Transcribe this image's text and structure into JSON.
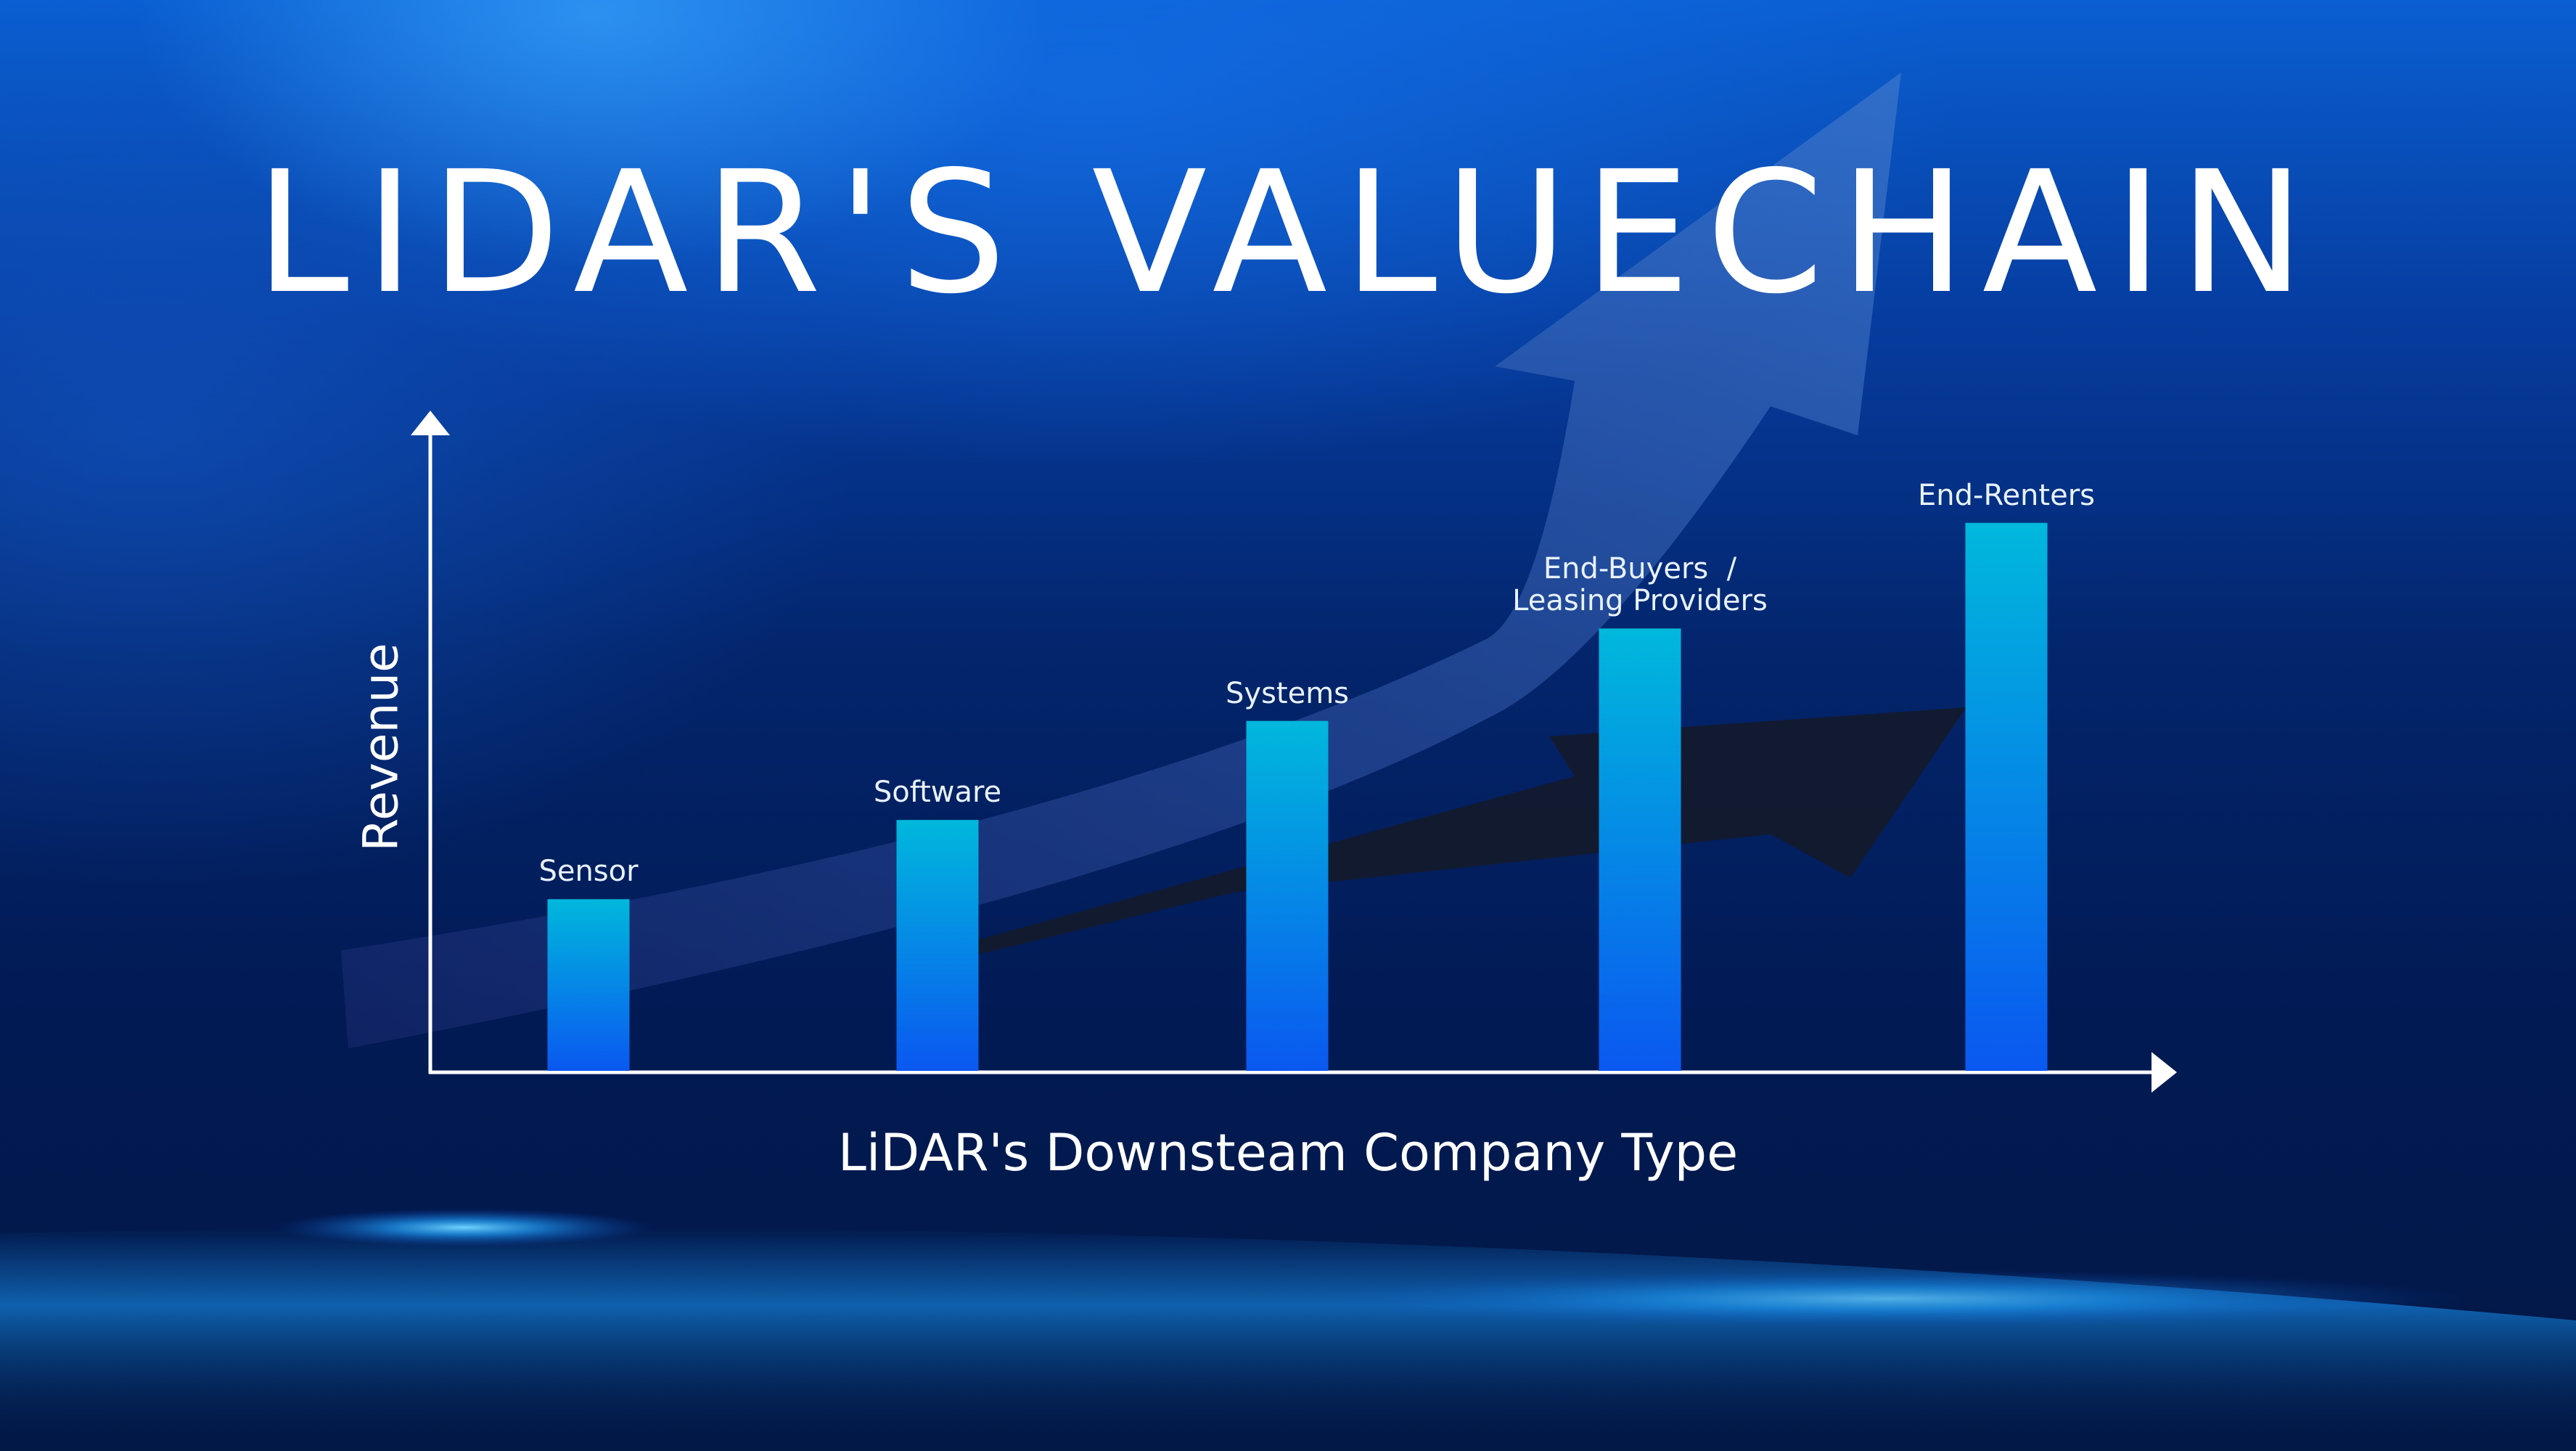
{
  "chart_data": {
    "type": "bar",
    "title": "LIDAR'S VALUECHAIN",
    "xlabel": "LiDAR's Downsteam Company Type",
    "ylabel": "Revenue",
    "categories": [
      "Sensor",
      "Software",
      "Systems",
      "End-Buyers  /\nLeasing Providers",
      "End-Renters"
    ],
    "values": [
      26,
      38,
      53,
      67,
      83
    ],
    "ylim": [
      0,
      100
    ],
    "grid": false,
    "legend": "none",
    "colors": {
      "bar_top": "#00b8dc",
      "bar_bottom": "#0a58f0",
      "axis": "#ffffff",
      "text": "#ffffff"
    }
  }
}
